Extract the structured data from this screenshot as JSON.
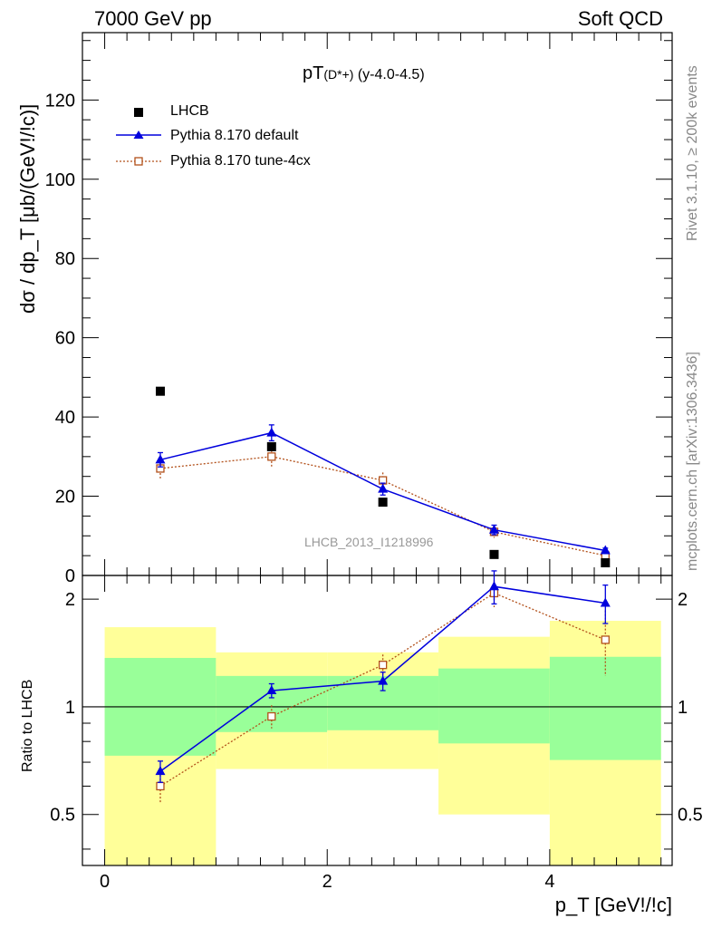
{
  "header": {
    "left": "7000 GeV pp",
    "right": "Soft QCD"
  },
  "side": {
    "rivet": "Rivet 3.1.10, ≥ 200k events",
    "mcplots": "mcplots.cern.ch [arXiv:1306.3436]"
  },
  "chart_data": [
    {
      "type": "scatter",
      "title_main": "pT",
      "title_particle": "(D*+)",
      "title_range": " (y-4.0-4.5)",
      "watermark": "LHCB_2013_I1218996",
      "ylabel": "dσ / dp_T [μb/(GeV!/!c)]",
      "xlim": [
        -0.2,
        5.1
      ],
      "ylim": [
        0,
        137
      ],
      "yticks": [
        0,
        20,
        40,
        60,
        80,
        100,
        120
      ],
      "ytick_labels": [
        "0",
        "20",
        "40",
        "60",
        "80",
        "100",
        "120"
      ],
      "legend_position": "top-left",
      "series": [
        {
          "name": "LHCB",
          "style": "data",
          "color": "#000000",
          "x": [
            0.5,
            1.5,
            2.5,
            3.5,
            4.5
          ],
          "y": [
            46.5,
            32.5,
            18.5,
            5.3,
            3.2
          ]
        },
        {
          "name": "Pythia 8.170 default",
          "style": "line",
          "color": "#0000dd",
          "x": [
            0.5,
            1.5,
            2.5,
            3.5,
            4.5
          ],
          "y": [
            29.2,
            36.0,
            21.8,
            11.5,
            6.3
          ],
          "err": [
            1.8,
            2.0,
            1.5,
            1.2,
            0.6
          ]
        },
        {
          "name": "Pythia 8.170 tune-4cx",
          "style": "dotted",
          "color": "#b2501a",
          "x": [
            0.5,
            1.5,
            2.5,
            3.5,
            4.5
          ],
          "y": [
            27.0,
            30.0,
            24.0,
            11.0,
            5.0
          ],
          "err": [
            2.5,
            2.5,
            2.0,
            1.5,
            1.2
          ]
        }
      ]
    },
    {
      "type": "scatter",
      "ylabel": "Ratio to LHCB",
      "xlabel": "p_T [GeV!/!c]",
      "xlim": [
        -0.2,
        5.1
      ],
      "ylim": [
        0.36,
        2.33
      ],
      "ylog": true,
      "xticks": [
        0,
        2,
        4
      ],
      "xtick_labels": [
        "0",
        "2",
        "4"
      ],
      "yticks": [
        0.5,
        1,
        2
      ],
      "ytick_labels": [
        "0.5",
        "1",
        "2"
      ],
      "bands": [
        {
          "x": [
            0,
            1
          ],
          "green": [
            0.73,
            1.37
          ],
          "yellow": [
            0.36,
            1.67
          ]
        },
        {
          "x": [
            1,
            2
          ],
          "green": [
            0.85,
            1.22
          ],
          "yellow": [
            0.67,
            1.42
          ]
        },
        {
          "x": [
            2,
            3
          ],
          "green": [
            0.86,
            1.22
          ],
          "yellow": [
            0.67,
            1.42
          ]
        },
        {
          "x": [
            3,
            4
          ],
          "green": [
            0.79,
            1.28
          ],
          "yellow": [
            0.5,
            1.57
          ]
        },
        {
          "x": [
            4,
            5
          ],
          "green": [
            0.71,
            1.38
          ],
          "yellow": [
            0.36,
            1.74
          ]
        }
      ],
      "series": [
        {
          "name": "Pythia 8.170 default",
          "style": "line",
          "color": "#0000dd",
          "x": [
            0.5,
            1.5,
            2.5,
            3.5,
            4.5
          ],
          "y": [
            0.66,
            1.11,
            1.18,
            2.17,
            1.95
          ],
          "err": [
            0.045,
            0.05,
            0.07,
            0.23,
            0.24
          ]
        },
        {
          "name": "Pythia 8.170 tune-4cx",
          "style": "dotted",
          "color": "#b2501a",
          "x": [
            0.5,
            1.5,
            2.5,
            3.5,
            4.5
          ],
          "y": [
            0.6,
            0.94,
            1.31,
            2.08,
            1.54
          ],
          "err": [
            0.06,
            0.07,
            0.09,
            0.18,
            0.32
          ]
        }
      ]
    }
  ]
}
